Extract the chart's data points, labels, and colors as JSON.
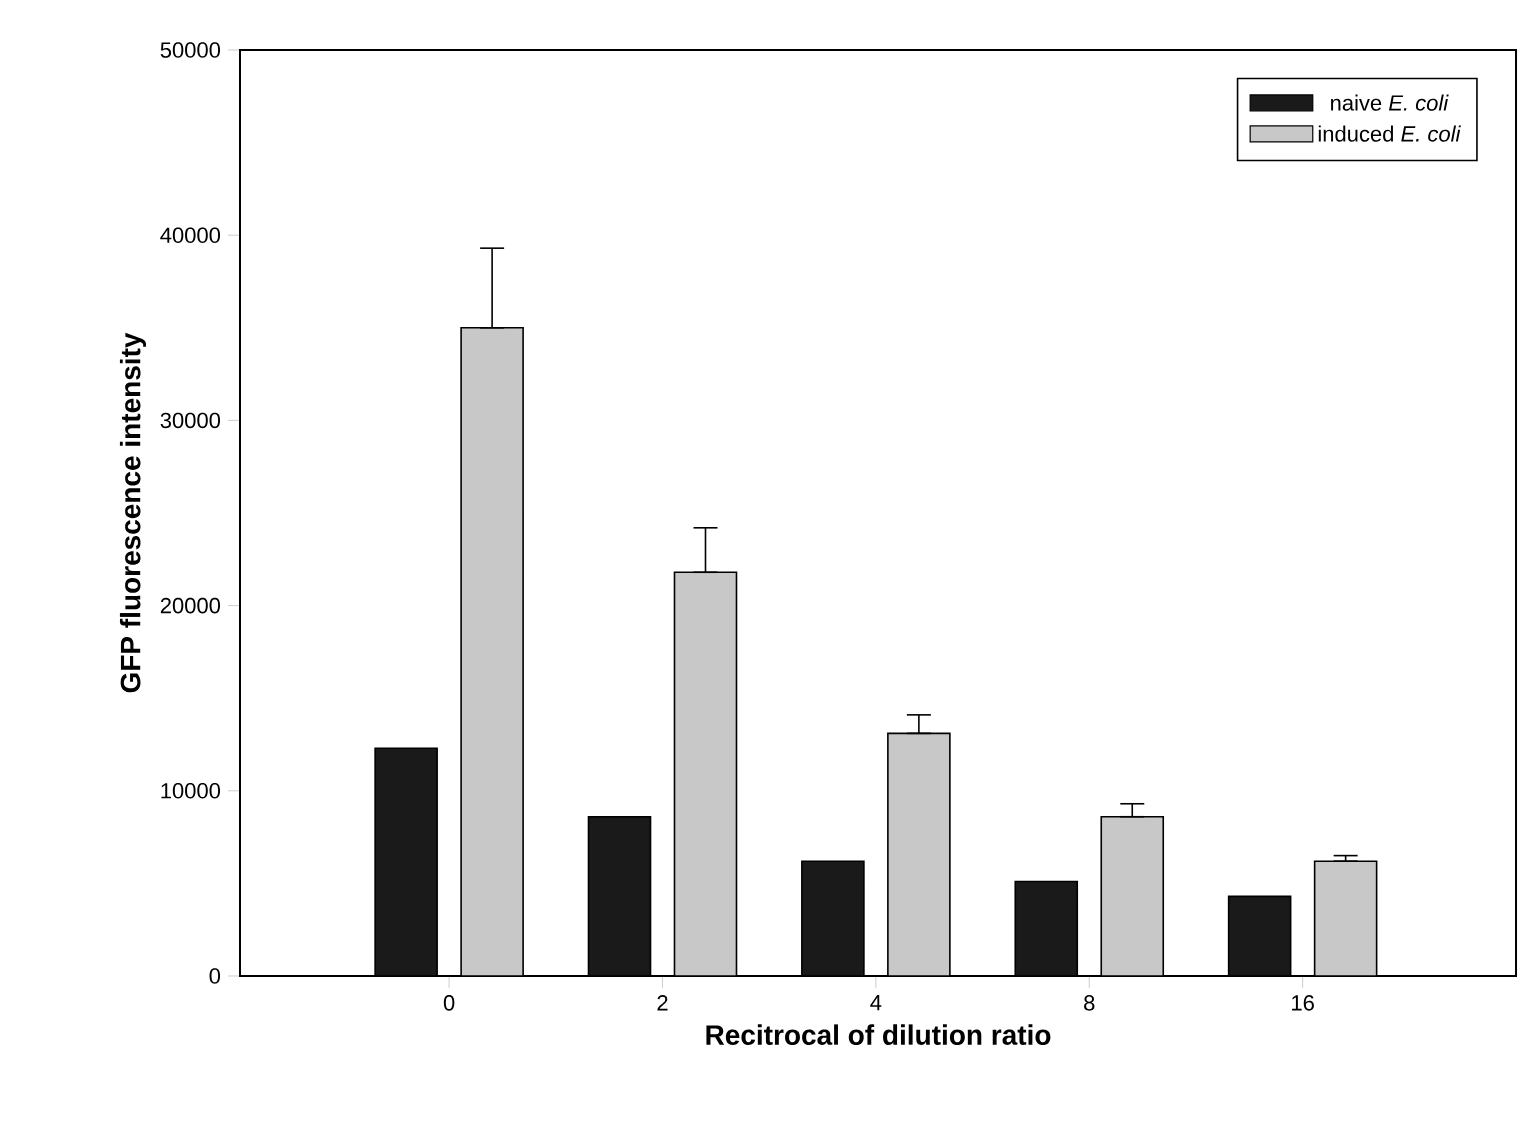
{
  "chart_data": {
    "type": "bar",
    "xlabel": "Recitrocal of dilution ratio",
    "ylabel": "GFP fluorescence intensity",
    "categories": [
      "0",
      "2",
      "4",
      "8",
      "16"
    ],
    "series": [
      {
        "name": "naive *E. coli*",
        "color": "#1a1a1a",
        "values": [
          12300,
          8600,
          6200,
          5100,
          4300
        ]
      },
      {
        "name": "induced *E. coli*",
        "color": "#c8c8c8",
        "values": [
          35000,
          21800,
          13100,
          8600,
          6200
        ],
        "errors": [
          [
            35000,
            39300
          ],
          [
            21800,
            24200
          ],
          [
            13100,
            14100
          ],
          [
            8600,
            9300
          ],
          [
            6200,
            6500
          ]
        ]
      }
    ],
    "ylim": [
      0,
      50000
    ],
    "yticks": [
      0,
      10000,
      20000,
      30000,
      40000,
      50000
    ],
    "grid": false,
    "legend": "top right"
  }
}
